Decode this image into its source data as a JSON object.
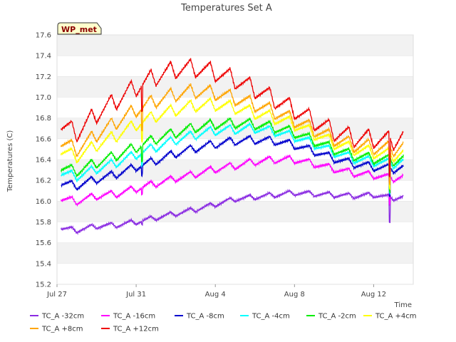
{
  "chart_data": {
    "type": "line",
    "title": "Temperatures Set A",
    "xlabel": "Time",
    "ylabel": "Temperatures (C)",
    "station_badge": "WP_met",
    "x_ticks": [
      "Jul 27",
      "Jul 31",
      "Aug 4",
      "Aug 8",
      "Aug 12"
    ],
    "y_ticks": [
      "15.2",
      "15.4",
      "15.6",
      "15.8",
      "16.0",
      "16.2",
      "16.4",
      "16.6",
      "16.8",
      "17.0",
      "17.2",
      "17.4",
      "17.6"
    ],
    "ylim": [
      15.2,
      17.6
    ],
    "xlim_days": [
      0,
      18
    ],
    "grid": "horizontal bands",
    "legend_position": "bottom",
    "x_day_points": [
      0.2,
      1,
      2,
      3,
      4,
      5,
      6,
      7,
      8,
      9,
      10,
      11,
      12,
      13,
      14,
      15,
      16,
      17,
      17.5
    ],
    "series": [
      {
        "name": "TC_A -32cm",
        "color": "#8a2be2",
        "values": [
          15.74,
          15.72,
          15.76,
          15.77,
          15.8,
          15.84,
          15.88,
          15.92,
          15.97,
          16.02,
          16.04,
          16.06,
          16.08,
          16.07,
          16.06,
          16.05,
          16.06,
          16.03,
          16.04
        ]
      },
      {
        "name": "TC_A -16cm",
        "color": "#ff00ff",
        "values": [
          16.02,
          16.0,
          16.05,
          16.07,
          16.12,
          16.17,
          16.22,
          16.26,
          16.31,
          16.34,
          16.38,
          16.4,
          16.4,
          16.36,
          16.31,
          16.27,
          16.25,
          16.22,
          16.24
        ]
      },
      {
        "name": "TC_A -8cm",
        "color": "#0000cd",
        "values": [
          16.17,
          16.15,
          16.21,
          16.26,
          16.33,
          16.39,
          16.46,
          16.51,
          16.55,
          16.58,
          16.59,
          16.58,
          16.54,
          16.48,
          16.41,
          16.36,
          16.33,
          16.31,
          16.33
        ]
      },
      {
        "name": "TC_A -4cm",
        "color": "#00ffff",
        "values": [
          16.27,
          16.24,
          16.31,
          16.37,
          16.45,
          16.52,
          16.59,
          16.64,
          16.68,
          16.69,
          16.7,
          16.67,
          16.62,
          16.55,
          16.47,
          16.41,
          16.38,
          16.36,
          16.39
        ]
      },
      {
        "name": "TC_A -2cm",
        "color": "#00ee00",
        "values": [
          16.32,
          16.29,
          16.37,
          16.44,
          16.52,
          16.6,
          16.66,
          16.71,
          16.74,
          16.75,
          16.74,
          16.71,
          16.66,
          16.58,
          16.5,
          16.44,
          16.41,
          16.39,
          16.42
        ]
      },
      {
        "name": "TC_A +4cm",
        "color": "#ffff00",
        "values": [
          16.48,
          16.43,
          16.54,
          16.63,
          16.74,
          16.82,
          16.88,
          16.92,
          16.93,
          16.9,
          16.85,
          16.8,
          16.74,
          16.65,
          16.56,
          16.5,
          16.47,
          16.44,
          16.47
        ]
      },
      {
        "name": "TC_A +8cm",
        "color": "#ffa500",
        "values": [
          16.56,
          16.5,
          16.64,
          16.76,
          16.88,
          16.97,
          17.03,
          17.06,
          17.04,
          16.99,
          16.93,
          16.86,
          16.78,
          16.69,
          16.6,
          16.54,
          16.52,
          16.5,
          16.54
        ]
      },
      {
        "name": "TC_A +12cm",
        "color": "#ee0000",
        "values": [
          16.73,
          16.66,
          16.84,
          16.97,
          17.1,
          17.2,
          17.27,
          17.28,
          17.24,
          17.17,
          17.08,
          16.98,
          16.88,
          16.77,
          16.67,
          16.61,
          16.6,
          16.58,
          16.64
        ]
      }
    ]
  }
}
